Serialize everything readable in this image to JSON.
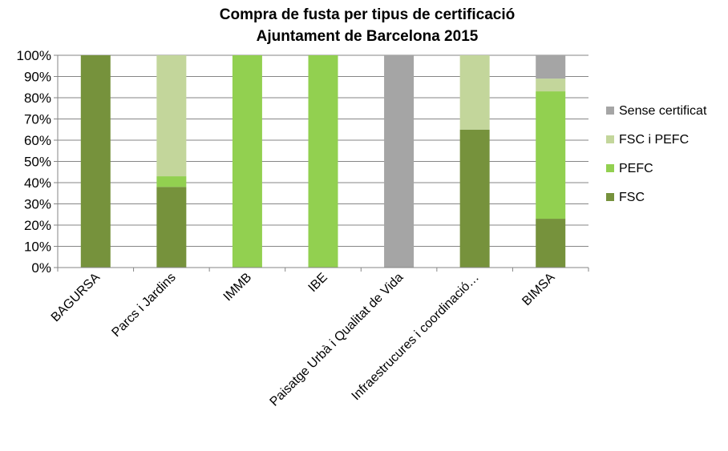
{
  "chart_data": {
    "type": "bar",
    "stacked": true,
    "title_lines": [
      "Compra de fusta per tipus de certificació",
      "Ajuntament de Barcelona 2015"
    ],
    "categories": [
      "BAGURSA",
      "Parcs i Jardins",
      "IMMB",
      "IBE",
      "Paisatge Urbà i Qualitat de Vida",
      "Infraestrucures i coordinació…",
      "BIMSA"
    ],
    "series": [
      {
        "name": "FSC",
        "color": "#76923c",
        "values": [
          100,
          38,
          0,
          0,
          0,
          65,
          23
        ]
      },
      {
        "name": "PEFC",
        "color": "#92d050",
        "values": [
          0,
          5,
          100,
          100,
          0,
          0,
          60
        ]
      },
      {
        "name": "FSC i PEFC",
        "color": "#c3d69b",
        "values": [
          0,
          57,
          0,
          0,
          0,
          35,
          6
        ]
      },
      {
        "name": "Sense certificat",
        "color": "#a5a5a5",
        "values": [
          0,
          0,
          0,
          0,
          100,
          0,
          11
        ]
      }
    ],
    "legend_order": [
      "Sense certificat",
      "FSC i PEFC",
      "PEFC",
      "FSC"
    ],
    "ylim": [
      0,
      100
    ],
    "yticks": [
      "0%",
      "10%",
      "20%",
      "30%",
      "40%",
      "50%",
      "60%",
      "70%",
      "80%",
      "90%",
      "100%"
    ],
    "grid": true,
    "legend_position": "right"
  }
}
